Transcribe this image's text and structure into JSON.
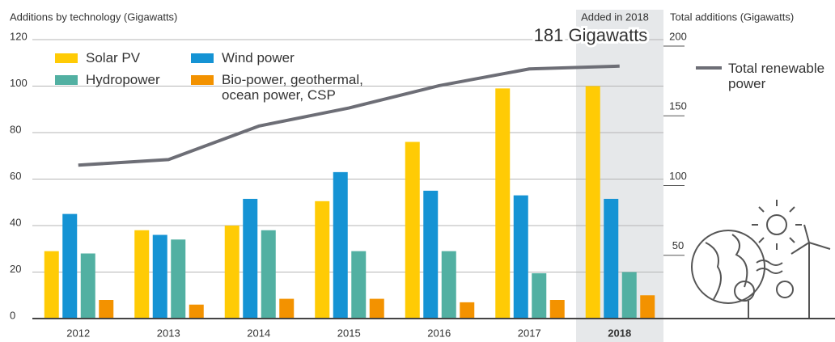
{
  "chart_data": {
    "type": "bar",
    "ylabel": "Additions by technology (Gigawatts)",
    "y2label": "Total additions (Gigawatts)",
    "categories": [
      "2012",
      "2013",
      "2014",
      "2015",
      "2016",
      "2017",
      "2018"
    ],
    "series": [
      {
        "name": "Solar PV",
        "color": "#ffcb05",
        "values": [
          29,
          38,
          40,
          50.5,
          76,
          99,
          100
        ]
      },
      {
        "name": "Wind power",
        "color": "#1593d4",
        "values": [
          45,
          36,
          51.5,
          63,
          55,
          53,
          51.5
        ]
      },
      {
        "name": "Hydropower",
        "color": "#52b0a2",
        "values": [
          28,
          34,
          38,
          29,
          29,
          19.5,
          20
        ]
      },
      {
        "name": "Bio-power, geothermal, ocean power, CSP",
        "color": "#f39200",
        "values": [
          8,
          6,
          8.5,
          8.5,
          7,
          8,
          10
        ]
      },
      {
        "name": "Total renewable power",
        "type": "line",
        "axis": "y2",
        "color": "#6d6e76",
        "values": [
          110,
          114,
          138,
          151,
          167,
          179,
          181
        ]
      }
    ],
    "ylim": [
      0,
      120
    ],
    "yticks": [
      0,
      20,
      40,
      60,
      80,
      100,
      120
    ],
    "y2lim": [
      0,
      200
    ],
    "y2ticks": [
      50,
      100,
      150,
      200
    ],
    "grid": true,
    "highlight": 6,
    "annotations": [
      "Added in 2018",
      "181 Gigawatts"
    ]
  }
}
